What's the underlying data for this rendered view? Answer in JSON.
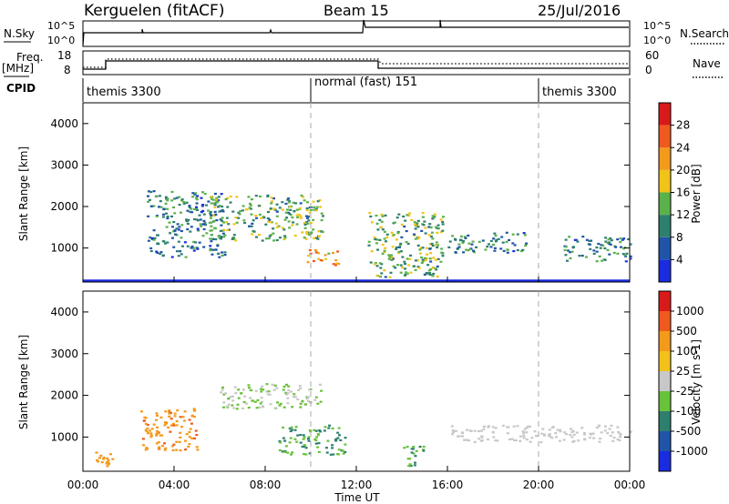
{
  "header": {
    "station": "Kerguelen (fitACF)",
    "beam": "Beam 15",
    "date": "25/Jul/2016"
  },
  "top_panels": {
    "nsky_label": "N.Sky",
    "nsearch_label": "N.Search",
    "nsky_ticks": [
      "10^5",
      "10^0"
    ],
    "nsearch_ticks": [
      "10^5",
      "10^0"
    ],
    "freq_label": "Freq.",
    "freq_unit": "[MHz]",
    "freq_ticks": [
      "18",
      "8"
    ],
    "nave_label": "Nave",
    "nave_ticks": [
      "60",
      "0"
    ],
    "cpid_label": "CPID",
    "cpid_segments": [
      {
        "label": "themis 3300"
      },
      {
        "label": "normal (fast) 151"
      },
      {
        "label": "themis 3300"
      }
    ]
  },
  "axes": {
    "xlabel": "Time UT",
    "ylabel": "Slant Range [km]",
    "xticks": [
      "00:00",
      "04:00",
      "08:00",
      "12:00",
      "16:00",
      "20:00",
      "00:00"
    ],
    "yticks": [
      "1000",
      "2000",
      "3000",
      "4000"
    ]
  },
  "colorbars": {
    "power": {
      "label": "Power [dB]",
      "ticks": [
        "4",
        "8",
        "12",
        "16",
        "20",
        "24",
        "28"
      ],
      "colors": [
        "#1a2ce0",
        "#1f54a8",
        "#2e7f6e",
        "#5bb14a",
        "#f0c419",
        "#f39a1c",
        "#ef5a1e",
        "#d91a1a"
      ]
    },
    "velocity": {
      "label": "Velocity [m s-1]",
      "ticks": [
        "1000",
        "500",
        "100",
        "25",
        "-25",
        "-100",
        "-500",
        "-1000"
      ],
      "colors": [
        "#1a2ce0",
        "#1f54a8",
        "#2e7f6e",
        "#68c23a",
        "#c8c8c8",
        "#f2c21a",
        "#f39a1c",
        "#ef5a1e",
        "#d91a1a"
      ]
    }
  },
  "chart_data": {
    "type": "heatmap",
    "xlabel": "Time UT",
    "ylabel": "Slant Range [km]",
    "xlim": [
      0,
      24
    ],
    "ylim": [
      180,
      4500
    ],
    "cpid_changes_hours": [
      1.0,
      10.0,
      20.0
    ],
    "power_regions": [
      {
        "t0": 2.8,
        "t1": 6.2,
        "r0": 800,
        "r1": 2400,
        "level": 2
      },
      {
        "t0": 5.5,
        "t1": 10.5,
        "r0": 1200,
        "r1": 2300,
        "level": 3
      },
      {
        "t0": 9.8,
        "t1": 11.2,
        "r0": 600,
        "r1": 1000,
        "level": 5
      },
      {
        "t0": 12.5,
        "t1": 15.8,
        "r0": 300,
        "r1": 1900,
        "level": 3
      },
      {
        "t0": 16.0,
        "t1": 19.5,
        "r0": 900,
        "r1": 1400,
        "level": 2
      },
      {
        "t0": 21.0,
        "t1": 24.0,
        "r0": 700,
        "r1": 1300,
        "level": 2
      }
    ],
    "velocity_regions": [
      {
        "t0": 0.5,
        "t1": 1.5,
        "r0": 200,
        "r1": 700,
        "v": -300
      },
      {
        "t0": 2.5,
        "t1": 5.0,
        "r0": 700,
        "r1": 1700,
        "v": -400
      },
      {
        "t0": 6.0,
        "t1": 10.5,
        "r0": 1700,
        "r1": 2300,
        "v": 25
      },
      {
        "t0": 8.5,
        "t1": 11.5,
        "r0": 600,
        "r1": 1300,
        "v": 100
      },
      {
        "t0": 14.0,
        "t1": 15.0,
        "r0": 300,
        "r1": 800,
        "v": 100
      },
      {
        "t0": 16.0,
        "t1": 24.0,
        "r0": 900,
        "r1": 1300,
        "v": 0
      }
    ]
  }
}
